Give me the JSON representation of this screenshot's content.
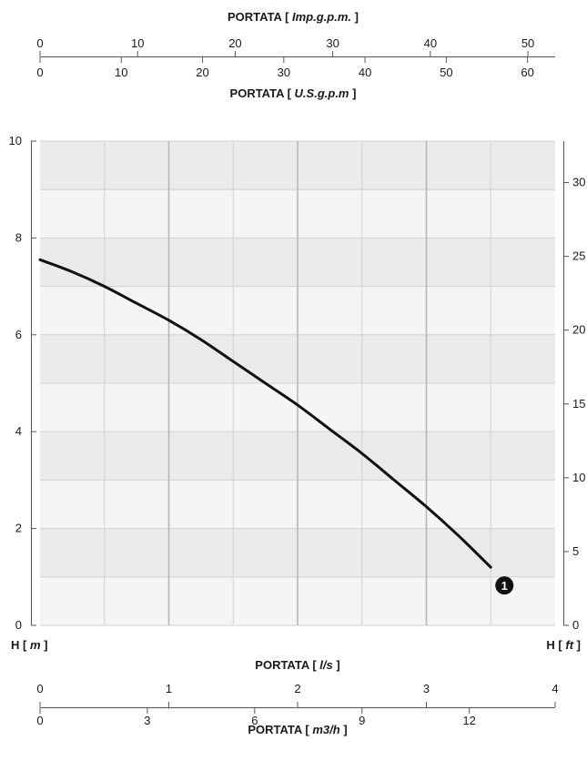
{
  "chart_data": {
    "type": "line",
    "colors": {
      "band_dark": "#ebebeb",
      "band_light": "#f5f5f5",
      "grid_major": "#b4b4b4",
      "grid_minor": "#d2d2d2",
      "curve": "#111111",
      "marker": "#111111",
      "marker_text": "#ffffff"
    },
    "x_axis": {
      "title_prefix": "PORTATA [ ",
      "title_unit": "l/s",
      "title_suffix": " ]",
      "range": [
        0,
        4
      ],
      "ticks": [
        0,
        1,
        2,
        3,
        4
      ]
    },
    "y_left": {
      "title_prefix": "H [ ",
      "title_unit": "m",
      "title_suffix": " ]",
      "range": [
        0,
        10
      ],
      "ticks": [
        0,
        2,
        4,
        6,
        8,
        10
      ]
    },
    "y_right": {
      "title_prefix": "H [ ",
      "title_unit": "ft",
      "title_suffix": " ]",
      "ticks": [
        0,
        5,
        10,
        15,
        20,
        25,
        30
      ]
    },
    "top_axis_imp": {
      "title_prefix": "PORTATA [ ",
      "title_unit": "Imp.g.p.m.",
      "title_suffix": " ]",
      "ticks": [
        0,
        10,
        20,
        30,
        40,
        50
      ]
    },
    "top_axis_us": {
      "title_prefix": "PORTATA [ ",
      "title_unit": "U.S.g.p.m",
      "title_suffix": " ]",
      "ticks": [
        0,
        10,
        20,
        30,
        40,
        50,
        60
      ]
    },
    "bottom_axis_m3h": {
      "title_prefix": "PORTATA [ ",
      "title_unit": "m3/h",
      "title_suffix": " ]",
      "ticks": [
        0,
        3,
        6,
        9,
        12
      ]
    },
    "series": [
      {
        "label": "1",
        "x": [
          0,
          0.25,
          0.5,
          0.75,
          1.0,
          1.25,
          1.5,
          1.75,
          2.0,
          2.25,
          2.5,
          2.75,
          3.0,
          3.25,
          3.5
        ],
        "y": [
          7.55,
          7.3,
          7.0,
          6.65,
          6.3,
          5.9,
          5.45,
          5.0,
          4.55,
          4.05,
          3.55,
          3.0,
          2.45,
          1.85,
          1.2
        ]
      }
    ]
  }
}
